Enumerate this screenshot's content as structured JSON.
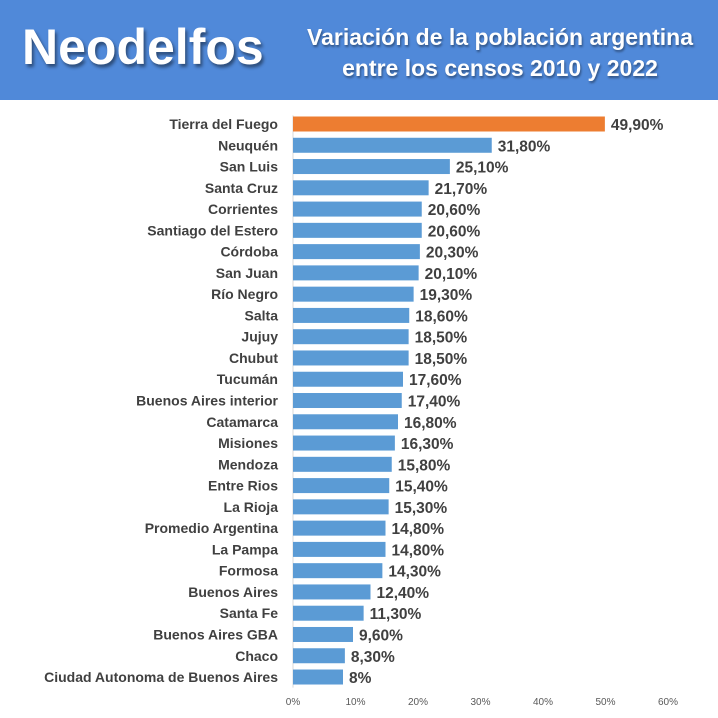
{
  "header": {
    "brand": "Neodelfos",
    "title_line1": "Variación de la población argentina",
    "title_line2": "entre los censos 2010 y 2022"
  },
  "chart_data": {
    "type": "bar",
    "orientation": "horizontal",
    "title": "Variación de la población argentina entre los censos 2010 y 2022",
    "categories": [
      "Tierra del Fuego",
      "Neuquén",
      "San Luis",
      "Santa Cruz",
      "Corrientes",
      "Santiago del Estero",
      "Córdoba",
      "San Juan",
      "Río Negro",
      "Salta",
      "Jujuy",
      "Chubut",
      "Tucumán",
      "Buenos Aires interior",
      "Catamarca",
      "Misiones",
      "Mendoza",
      "Entre Rios",
      "La Rioja",
      "Promedio Argentina",
      "La Pampa",
      "Formosa",
      "Buenos Aires",
      "Santa Fe",
      "Buenos Aires GBA",
      "Chaco",
      "Ciudad Autonoma de Buenos Aires"
    ],
    "values": [
      49.9,
      31.8,
      25.1,
      21.7,
      20.6,
      20.6,
      20.3,
      20.1,
      19.3,
      18.6,
      18.5,
      18.5,
      17.6,
      17.4,
      16.8,
      16.3,
      15.8,
      15.4,
      15.3,
      14.8,
      14.8,
      14.3,
      12.4,
      11.3,
      9.6,
      8.3,
      8.0
    ],
    "data_labels": [
      "49,90%",
      "31,80%",
      "25,10%",
      "21,70%",
      "20,60%",
      "20,60%",
      "20,30%",
      "20,10%",
      "19,30%",
      "18,60%",
      "18,50%",
      "18,50%",
      "17,60%",
      "17,40%",
      "16,80%",
      "16,30%",
      "15,80%",
      "15,40%",
      "15,30%",
      "14,80%",
      "14,80%",
      "14,30%",
      "12,40%",
      "11,30%",
      "9,60%",
      "8,30%",
      "8%"
    ],
    "xlim": [
      0,
      60
    ],
    "xticks": [
      "0%",
      "10%",
      "20%",
      "30%",
      "40%",
      "50%",
      "60%"
    ],
    "grid": false,
    "colors": {
      "default": "#5b9bd5",
      "highlight": "#ed7d31"
    },
    "highlight_category": "Tierra del Fuego"
  }
}
